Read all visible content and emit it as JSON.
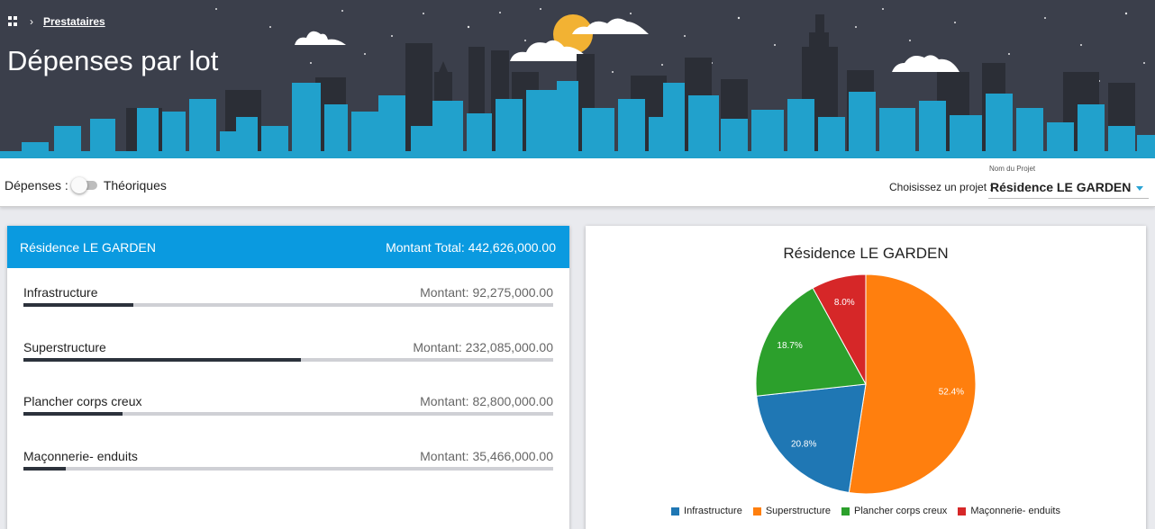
{
  "breadcrumb": {
    "link": "Prestataires"
  },
  "page_title": "Dépenses par lot",
  "toolbar": {
    "toggle_left": "Dépenses :",
    "toggle_right": "Théoriques",
    "project_prompt": "Choisissez un projet :",
    "select_floating": "Nom du Projet",
    "select_value": "Résidence LE GARDEN"
  },
  "summary": {
    "project": "Résidence LE GARDEN",
    "total": "Montant Total: 442,626,000.00"
  },
  "lots": [
    {
      "name": "Infrastructure",
      "amount": "Montant: 92,275,000.00",
      "progress": 0.208
    },
    {
      "name": "Superstructure",
      "amount": "Montant: 232,085,000.00",
      "progress": 0.524
    },
    {
      "name": "Plancher corps creux",
      "amount": "Montant: 82,800,000.00",
      "progress": 0.187
    },
    {
      "name": "Maçonnerie- enduits",
      "amount": "Montant: 35,466,000.00",
      "progress": 0.08
    }
  ],
  "chart_data": {
    "type": "pie",
    "title": "Résidence LE GARDEN",
    "categories": [
      "Infrastructure",
      "Superstructure",
      "Plancher corps creux",
      "Maçonnerie- enduits"
    ],
    "values": [
      20.8,
      52.4,
      18.7,
      8.0
    ],
    "labels": [
      "20.8%",
      "52.4%",
      "18.7%",
      "8.0%"
    ],
    "colors": [
      "#1f77b4",
      "#ff7f0e",
      "#2ca02c",
      "#d62728"
    ],
    "legend": "bottom"
  }
}
